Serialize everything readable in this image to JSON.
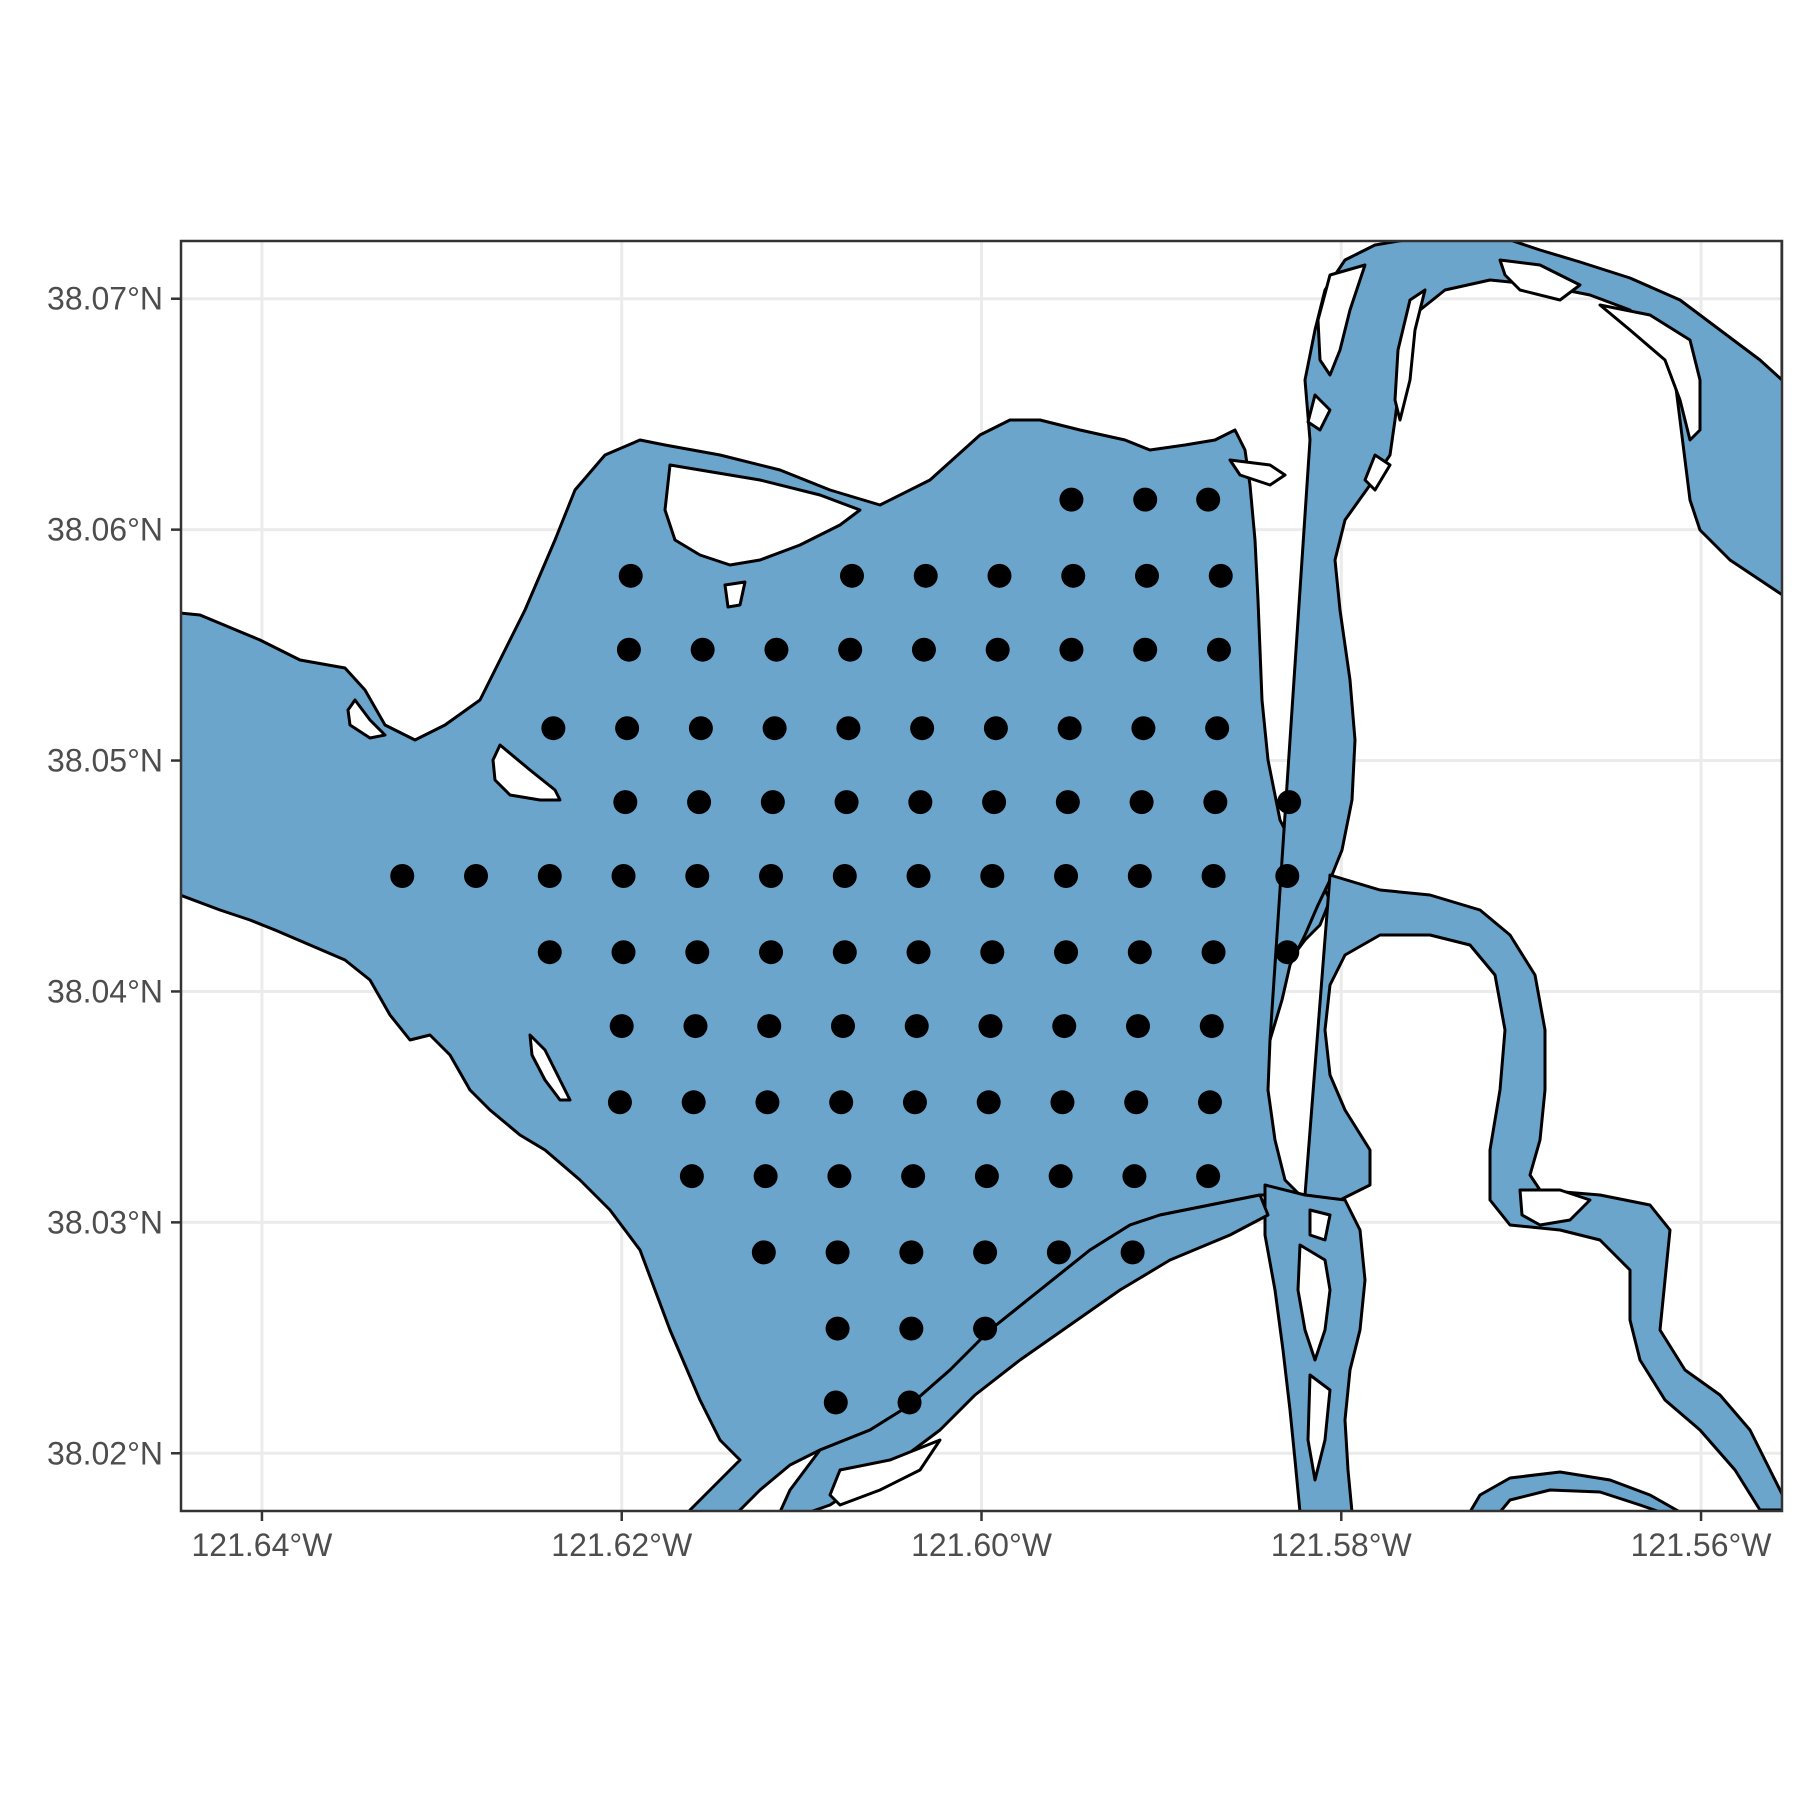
{
  "chart_data": {
    "type": "scatter",
    "title": "",
    "xlabel": "",
    "ylabel": "",
    "xlim": [
      -121.6445,
      -121.5555
    ],
    "ylim": [
      38.0175,
      38.0725
    ],
    "grid": true,
    "x_ticks": [
      {
        "value": -121.64,
        "label": "121.64°W"
      },
      {
        "value": -121.62,
        "label": "121.62°W"
      },
      {
        "value": -121.6,
        "label": "121.60°W"
      },
      {
        "value": -121.58,
        "label": "121.58°W"
      },
      {
        "value": -121.56,
        "label": "121.56°W"
      }
    ],
    "y_ticks": [
      {
        "value": 38.07,
        "label": "38.07°N"
      },
      {
        "value": 38.06,
        "label": "38.06°N"
      },
      {
        "value": 38.05,
        "label": "38.05°N"
      },
      {
        "value": 38.04,
        "label": "38.04°N"
      },
      {
        "value": 38.03,
        "label": "38.03°N"
      },
      {
        "value": 38.02,
        "label": "38.02°N"
      }
    ],
    "colors": {
      "water": "#6ba5cc",
      "outline": "#000000",
      "points": "#000000"
    },
    "rows": [
      {
        "lat": 38.0613,
        "lons": [
          -121.595,
          -121.5909,
          -121.5874
        ]
      },
      {
        "lat": 38.058,
        "lons": [
          -121.6195,
          -121.6072,
          -121.6031,
          -121.599,
          -121.5949,
          -121.5908,
          -121.5867
        ]
      },
      {
        "lat": 38.0548,
        "lons": [
          -121.6196,
          -121.6155,
          -121.6114,
          -121.6073,
          -121.6032,
          -121.5991,
          -121.595,
          -121.5909,
          -121.5868
        ]
      },
      {
        "lat": 38.0514,
        "lons": [
          -121.6238,
          -121.6197,
          -121.6156,
          -121.6115,
          -121.6074,
          -121.6033,
          -121.5992,
          -121.5951,
          -121.591,
          -121.5869
        ]
      },
      {
        "lat": 38.0482,
        "lons": [
          -121.6198,
          -121.6157,
          -121.6116,
          -121.6075,
          -121.6034,
          -121.5993,
          -121.5952,
          -121.5911,
          -121.587,
          -121.5829
        ]
      },
      {
        "lat": 38.045,
        "lons": [
          -121.6322,
          -121.6281,
          -121.624,
          -121.6199,
          -121.6158,
          -121.6117,
          -121.6076,
          -121.6035,
          -121.5994,
          -121.5953,
          -121.5912,
          -121.5871,
          -121.583
        ]
      },
      {
        "lat": 38.0417,
        "lons": [
          -121.624,
          -121.6199,
          -121.6158,
          -121.6117,
          -121.6076,
          -121.6035,
          -121.5994,
          -121.5953,
          -121.5912,
          -121.5871,
          -121.583
        ]
      },
      {
        "lat": 38.0385,
        "lons": [
          -121.62,
          -121.6159,
          -121.6118,
          -121.6077,
          -121.6036,
          -121.5995,
          -121.5954,
          -121.5913,
          -121.5872
        ]
      },
      {
        "lat": 38.0352,
        "lons": [
          -121.6201,
          -121.616,
          -121.6119,
          -121.6078,
          -121.6037,
          -121.5996,
          -121.5955,
          -121.5914,
          -121.5873
        ]
      },
      {
        "lat": 38.032,
        "lons": [
          -121.6161,
          -121.612,
          -121.6079,
          -121.6038,
          -121.5997,
          -121.5956,
          -121.5915,
          -121.5874
        ]
      },
      {
        "lat": 38.0287,
        "lons": [
          -121.6121,
          -121.608,
          -121.6039,
          -121.5998,
          -121.5957,
          -121.5916
        ]
      },
      {
        "lat": 38.0254,
        "lons": [
          -121.608,
          -121.6039,
          -121.5998
        ]
      },
      {
        "lat": 38.0222,
        "lons": [
          -121.6081,
          -121.604
        ]
      }
    ]
  }
}
